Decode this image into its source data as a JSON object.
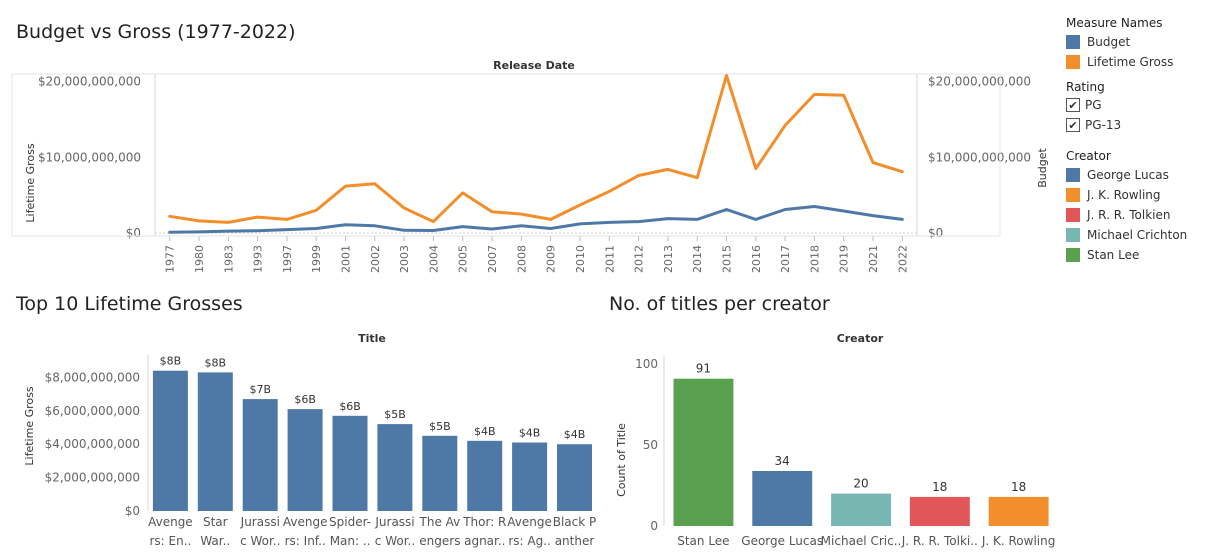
{
  "dashboard": {
    "title_main": "Budget vs Gross (1977-2022)",
    "title_top10": "Top 10 Lifetime Grosses",
    "title_creators": "No. of titles per creator"
  },
  "legend": {
    "measure_title": "Measure Names",
    "measures": [
      {
        "label": "Budget",
        "color": "#4e79a7"
      },
      {
        "label": "Lifetime Gross",
        "color": "#f28e2b"
      }
    ],
    "rating_title": "Rating",
    "ratings": [
      {
        "label": "PG",
        "checked": true
      },
      {
        "label": "PG-13",
        "checked": true
      }
    ],
    "creator_title": "Creator",
    "creators": [
      {
        "label": "George Lucas",
        "color": "#4e79a7"
      },
      {
        "label": "J. K. Rowling",
        "color": "#f28e2b"
      },
      {
        "label": "J. R. R. Tolkien",
        "color": "#e15759"
      },
      {
        "label": "Michael Crichton",
        "color": "#76b7b2"
      },
      {
        "label": "Stan Lee",
        "color": "#59a14f"
      }
    ]
  },
  "chart_data": [
    {
      "type": "line",
      "title": "Budget vs Gross (1977-2022)",
      "header": "Release Date",
      "ylabel": "Lifetime Gross",
      "y2label": "Budget",
      "ylim": [
        0,
        21000000000
      ],
      "y_ticks": [
        0,
        10000000000,
        20000000000
      ],
      "y_tick_labels": [
        "$0",
        "$10,000,000,000",
        "$20,000,000,000"
      ],
      "categories": [
        "1977",
        "1980",
        "1983",
        "1993",
        "1997",
        "1999",
        "2001",
        "2002",
        "2003",
        "2004",
        "2005",
        "2007",
        "2008",
        "2009",
        "2010",
        "2011",
        "2012",
        "2013",
        "2014",
        "2015",
        "2016",
        "2017",
        "2018",
        "2019",
        "2021",
        "2022"
      ],
      "series": [
        {
          "name": "Lifetime Gross",
          "color": "#f28e2b",
          "values": [
            2200000000,
            1600000000,
            1400000000,
            2100000000,
            1800000000,
            3000000000,
            6200000000,
            6500000000,
            3300000000,
            1500000000,
            5300000000,
            2800000000,
            2500000000,
            1800000000,
            3700000000,
            5500000000,
            7600000000,
            8400000000,
            7300000000,
            20800000000,
            8500000000,
            14200000000,
            18300000000,
            18200000000,
            9300000000,
            8100000000
          ]
        },
        {
          "name": "Budget",
          "color": "#4e79a7",
          "values": [
            100000000,
            150000000,
            250000000,
            300000000,
            450000000,
            600000000,
            1100000000,
            950000000,
            350000000,
            330000000,
            850000000,
            530000000,
            950000000,
            600000000,
            1200000000,
            1400000000,
            1500000000,
            1900000000,
            1800000000,
            3100000000,
            1800000000,
            3100000000,
            3500000000,
            2900000000,
            2300000000,
            1800000000
          ]
        }
      ]
    },
    {
      "type": "bar",
      "title": "Top 10 Lifetime Grosses",
      "header": "Title",
      "ylabel": "Lifetime Gross",
      "ylim": [
        0,
        8800000000
      ],
      "y_ticks": [
        0,
        2000000000,
        4000000000,
        6000000000,
        8000000000
      ],
      "y_tick_labels": [
        "$0",
        "$2,000,000,000",
        "$4,000,000,000",
        "$6,000,000,000",
        "$8,000,000,000"
      ],
      "color": "#4e79a7",
      "categories": [
        [
          "Avenge",
          "rs: En.."
        ],
        [
          "Star",
          "War.."
        ],
        [
          "Jurassi",
          "c Wor.."
        ],
        [
          "Avenge",
          "rs: Inf.."
        ],
        [
          "Spider-",
          "Man: .."
        ],
        [
          "Jurassi",
          "c Wor.."
        ],
        [
          "The Av",
          "engers"
        ],
        [
          "Thor: R",
          "agnar.."
        ],
        [
          "Avenge",
          "rs: Ag.."
        ],
        [
          "Black P",
          "anther"
        ]
      ],
      "values": [
        8400000000,
        8300000000,
        6700000000,
        6100000000,
        5700000000,
        5200000000,
        4500000000,
        4200000000,
        4100000000,
        4000000000
      ],
      "data_labels": [
        "$8B",
        "$8B",
        "$7B",
        "$6B",
        "$6B",
        "$5B",
        "$5B",
        "$4B",
        "$4B",
        "$4B"
      ]
    },
    {
      "type": "bar",
      "title": "No. of titles per creator",
      "header": "Creator",
      "ylabel": "Count of Title",
      "ylim": [
        0,
        105
      ],
      "y_ticks": [
        0,
        50,
        100
      ],
      "y_tick_labels": [
        "0",
        "50",
        "100"
      ],
      "categories": [
        "Stan Lee",
        "George Lucas",
        "Michael Cric..",
        "J. R. R. Tolki..",
        "J. K. Rowling"
      ],
      "values": [
        91,
        34,
        20,
        18,
        18
      ],
      "data_labels": [
        "91",
        "34",
        "20",
        "18",
        "18"
      ],
      "colors": [
        "#59a14f",
        "#4e79a7",
        "#76b7b2",
        "#e15759",
        "#f28e2b"
      ]
    }
  ]
}
